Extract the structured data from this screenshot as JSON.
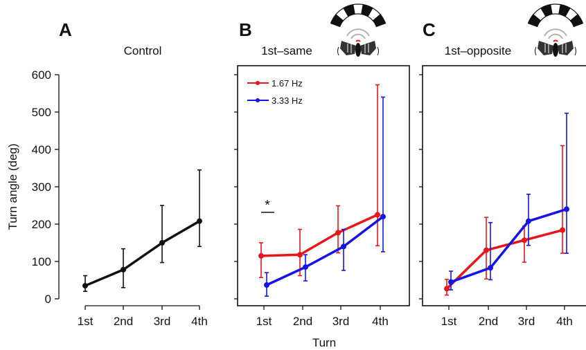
{
  "figure": {
    "ylabel": "Turn angle (deg)",
    "xlabel": "Turn"
  },
  "colors": {
    "control": "#111111",
    "low_freq": "#e8161b",
    "high_freq": "#1414e6",
    "arrow": "#1fb51f",
    "ear_arc": "#b3b3b3"
  },
  "icons": [
    "stimulus-drum-icon",
    "moth-icon",
    "rotation-arrow-icon"
  ],
  "chart_data": [
    {
      "type": "line",
      "panel_letter": "A",
      "title": "Control",
      "categories": [
        "1st",
        "2nd",
        "3rd",
        "4th"
      ],
      "ylim": [
        0,
        600
      ],
      "yticks": [
        0,
        100,
        200,
        300,
        400,
        500,
        600
      ],
      "show_ytick_labels": true,
      "grid": false,
      "series": [
        {
          "color": "#111111",
          "values": [
            35,
            78,
            150,
            208
          ],
          "err_low": [
            20,
            30,
            97,
            140
          ],
          "err_high": [
            62,
            134,
            250,
            345
          ]
        }
      ]
    },
    {
      "type": "line",
      "panel_letter": "B",
      "title": "1st–same",
      "categories": [
        "1st",
        "2nd",
        "3rd",
        "4th"
      ],
      "ylim": [
        0,
        600
      ],
      "yticks": [
        0,
        100,
        200,
        300,
        400,
        500,
        600
      ],
      "show_ytick_labels": false,
      "grid": false,
      "legend_position": "top-left",
      "annotation": {
        "text": "*",
        "category_index": 0,
        "y": 232
      },
      "series": [
        {
          "name": "1.67 Hz",
          "color": "#e8161b",
          "values": [
            115,
            118,
            177,
            225
          ],
          "err_low": [
            57,
            62,
            123,
            142
          ],
          "err_high": [
            150,
            186,
            249,
            573
          ]
        },
        {
          "name": "3.33 Hz",
          "color": "#1414e6",
          "values": [
            37,
            85,
            140,
            220
          ],
          "err_low": [
            7,
            48,
            76,
            126
          ],
          "err_high": [
            70,
            118,
            186,
            540
          ]
        }
      ]
    },
    {
      "type": "line",
      "panel_letter": "C",
      "title": "1st–opposite",
      "categories": [
        "1st",
        "2nd",
        "3rd",
        "4th"
      ],
      "ylim": [
        0,
        600
      ],
      "yticks": [
        0,
        100,
        200,
        300,
        400,
        500,
        600
      ],
      "show_ytick_labels": false,
      "grid": false,
      "series": [
        {
          "color": "#e8161b",
          "values": [
            27,
            130,
            157,
            184
          ],
          "err_low": [
            10,
            53,
            98,
            122
          ],
          "err_high": [
            52,
            218,
            195,
            410
          ]
        },
        {
          "color": "#1414e6",
          "values": [
            45,
            83,
            208,
            240
          ],
          "err_low": [
            24,
            51,
            143,
            122
          ],
          "err_high": [
            74,
            204,
            280,
            497
          ]
        }
      ]
    }
  ]
}
